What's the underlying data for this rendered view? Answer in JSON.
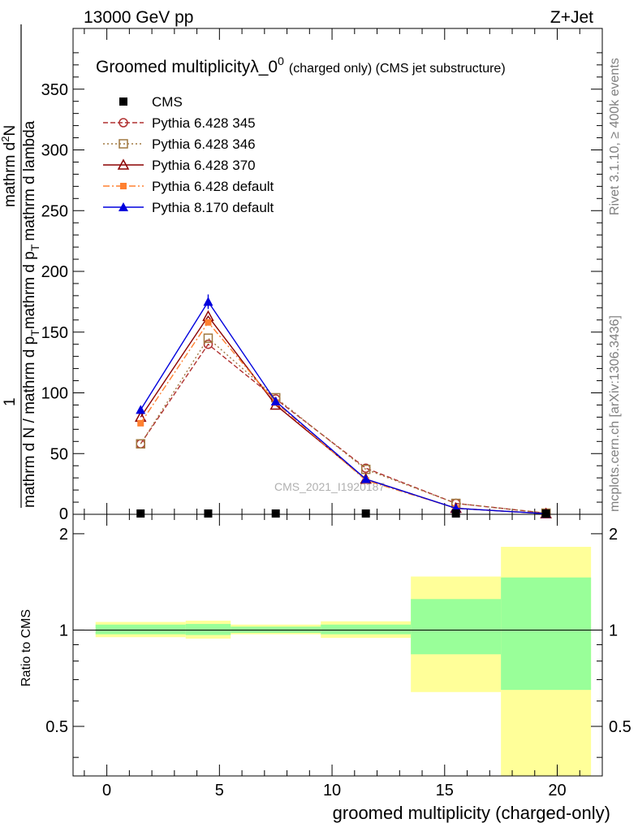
{
  "header": {
    "energy_label": "13000 GeV pp",
    "process_label": "Z+Jet"
  },
  "side_labels": {
    "rivet": "Rivet 3.1.10, ≥ 400k events",
    "mcplots": "mcplots.cern.ch [arXiv:1306.3436]"
  },
  "watermark": "CMS_2021_I1920187",
  "main_panel": {
    "title_main": "Groomed multiplicityλ_0",
    "title_sup": "0",
    "title_small": "(charged only) (CMS jet substructure)",
    "ylabel_top_frac": "1",
    "ylabel_top": "mathrm d N / mathrm d p",
    "ylabel_top_sub": "T",
    "ylabel_top2": "mathrm d N",
    "ylabel_sub2": "mathrm d p",
    "ylabel_sub2_sub": "T",
    "ylabel_sub2_rest": "mathrm d lambda",
    "ylabel_numerator": "mathrm d",
    "ylabel_numerator_sup": "2",
    "ylabel_numerator_rest": "N",
    "ylabel_denominator": "mathrm d p",
    "ylabel_denominator_sub": "T",
    "ylabel_denominator_rest": "mathrm d lambda",
    "ylim": [
      0,
      400
    ],
    "yticks": [
      "50",
      "100",
      "150",
      "200",
      "250",
      "300",
      "350"
    ],
    "ytick_zero": "0"
  },
  "ratio_panel": {
    "ylabel": "Ratio to CMS",
    "yticks": [
      "0.5",
      "1",
      "2"
    ],
    "xlabel": "groomed multiplicity (charged-only)",
    "xticks": [
      "0",
      "5",
      "10",
      "15",
      "20"
    ]
  },
  "chart_data": {
    "type": "line",
    "x_bin_edges": [
      -0.5,
      3.5,
      5.5,
      9.5,
      13.5,
      17.5,
      21.5
    ],
    "x": [
      1.5,
      4.5,
      7.5,
      11.5,
      15.5,
      19.5
    ],
    "xlim": [
      -1.5,
      22
    ],
    "ylim": [
      0,
      400
    ],
    "ratio_ylim_log": [
      0.35,
      2.3
    ],
    "series": [
      {
        "name": "CMS",
        "marker": "filled-square",
        "line": "none",
        "color": "#000000",
        "values": [
          0.5,
          0.5,
          0.5,
          0.5,
          0.5,
          0.5
        ]
      },
      {
        "name": "Pythia 6.428 345",
        "marker": "open-circle",
        "line": "dashed",
        "color": "#b03030",
        "values": [
          58,
          140,
          95,
          38,
          9,
          1
        ]
      },
      {
        "name": "Pythia 6.428 346",
        "marker": "open-square",
        "line": "dotted",
        "color": "#a07840",
        "values": [
          58,
          145,
          96,
          37,
          9,
          1
        ]
      },
      {
        "name": "Pythia 6.428 370",
        "marker": "open-triangle",
        "line": "solid",
        "color": "#8b0000",
        "values": [
          80,
          163,
          90,
          29,
          5,
          0.5
        ]
      },
      {
        "name": "Pythia 6.428 default",
        "marker": "filled-square-small",
        "line": "dashdot",
        "color": "#ff8030",
        "values": [
          75,
          158,
          92,
          28,
          5,
          0.5
        ]
      },
      {
        "name": "Pythia 8.170 default",
        "marker": "filled-triangle",
        "line": "solid",
        "color": "#0000dd",
        "values": [
          86,
          175,
          93,
          29,
          5,
          0.5
        ]
      }
    ],
    "ratio_bands": {
      "inner_green": [
        [
          0.97,
          1.04
        ],
        [
          0.965,
          1.045
        ],
        [
          0.98,
          1.025
        ],
        [
          0.97,
          1.04
        ],
        [
          0.84,
          1.25
        ],
        [
          0.65,
          1.46
        ]
      ],
      "outer_yellow": [
        [
          0.95,
          1.06
        ],
        [
          0.94,
          1.07
        ],
        [
          0.97,
          1.04
        ],
        [
          0.945,
          1.065
        ],
        [
          0.64,
          1.47
        ],
        [
          0.35,
          1.82
        ]
      ]
    },
    "legend_position": "top-left"
  }
}
